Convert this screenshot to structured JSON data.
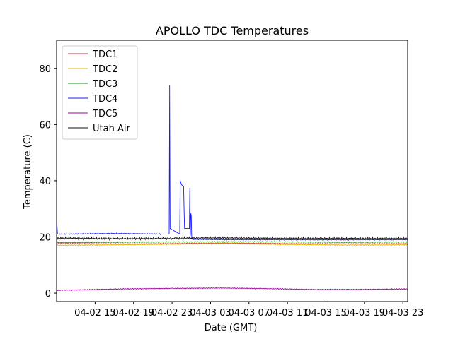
{
  "chart_data": {
    "type": "line",
    "title": "APOLLO TDC Temperatures",
    "xlabel": "Date (GMT)",
    "ylabel": "Temperature (C)",
    "xlim_hours": [
      11,
      47.5
    ],
    "ylim": [
      -3,
      90
    ],
    "x_ticks": [
      {
        "hour": 15,
        "label": "04-02 15"
      },
      {
        "hour": 19,
        "label": "04-02 19"
      },
      {
        "hour": 23,
        "label": "04-02 23"
      },
      {
        "hour": 27,
        "label": "04-03 03"
      },
      {
        "hour": 31,
        "label": "04-03 07"
      },
      {
        "hour": 35,
        "label": "04-03 11"
      },
      {
        "hour": 39,
        "label": "04-03 15"
      },
      {
        "hour": 43,
        "label": "04-03 19"
      },
      {
        "hour": 47,
        "label": "04-03 23"
      }
    ],
    "y_ticks": [
      0,
      20,
      40,
      60,
      80
    ],
    "legend_position": "top-left",
    "series": [
      {
        "name": "TDC1",
        "color": "#e8253a",
        "points": [
          [
            11,
            17.6
          ],
          [
            17,
            17.5
          ],
          [
            23,
            17.6
          ],
          [
            29,
            17.8
          ],
          [
            35,
            17.6
          ],
          [
            41,
            17.5
          ],
          [
            47.5,
            17.6
          ]
        ]
      },
      {
        "name": "TDC2",
        "color": "#e0b800",
        "points": [
          [
            11,
            17.0
          ],
          [
            17,
            17.2
          ],
          [
            23,
            17.4
          ],
          [
            29,
            17.6
          ],
          [
            35,
            17.3
          ],
          [
            41,
            17.1
          ],
          [
            47.5,
            17.2
          ]
        ]
      },
      {
        "name": "TDC3",
        "color": "#1f8f1f",
        "points": [
          [
            11,
            18.0
          ],
          [
            17,
            18.1
          ],
          [
            23,
            18.2
          ],
          [
            29,
            18.3
          ],
          [
            35,
            18.2
          ],
          [
            41,
            18.1
          ],
          [
            47.5,
            18.2
          ]
        ]
      },
      {
        "name": "TDC4",
        "color": "#1a1aff",
        "points": [
          [
            11,
            26.0
          ],
          [
            11.1,
            21.0
          ],
          [
            17,
            21.2
          ],
          [
            22,
            21.0
          ],
          [
            22.7,
            21.0
          ],
          [
            22.75,
            74.0
          ],
          [
            22.8,
            23.0
          ],
          [
            23.8,
            21.0
          ],
          [
            23.85,
            40.0
          ],
          [
            24.0,
            38.5
          ],
          [
            24.2,
            38.0
          ],
          [
            24.3,
            23.0
          ],
          [
            24.8,
            23.0
          ],
          [
            24.85,
            37.5
          ],
          [
            24.9,
            20.5
          ],
          [
            24.95,
            28.5
          ],
          [
            25.0,
            27.5
          ],
          [
            25.05,
            19.2
          ],
          [
            29,
            19.0
          ],
          [
            35,
            19.0
          ],
          [
            41,
            19.0
          ],
          [
            47.5,
            19.0
          ]
        ]
      },
      {
        "name": "TDC5",
        "color": "#a000a0",
        "points": [
          [
            11,
            1.0
          ],
          [
            14,
            1.2
          ],
          [
            18,
            1.5
          ],
          [
            23,
            1.7
          ],
          [
            28,
            1.8
          ],
          [
            33,
            1.6
          ],
          [
            38,
            1.3
          ],
          [
            43,
            1.3
          ],
          [
            47.5,
            1.5
          ]
        ]
      },
      {
        "name": "Utah Air",
        "color": "#111111",
        "points": [
          [
            11,
            19.5
          ],
          [
            17,
            19.4
          ],
          [
            23,
            19.5
          ],
          [
            29,
            19.6
          ],
          [
            35,
            19.5
          ],
          [
            41,
            19.4
          ],
          [
            47.5,
            19.5
          ]
        ]
      }
    ]
  }
}
